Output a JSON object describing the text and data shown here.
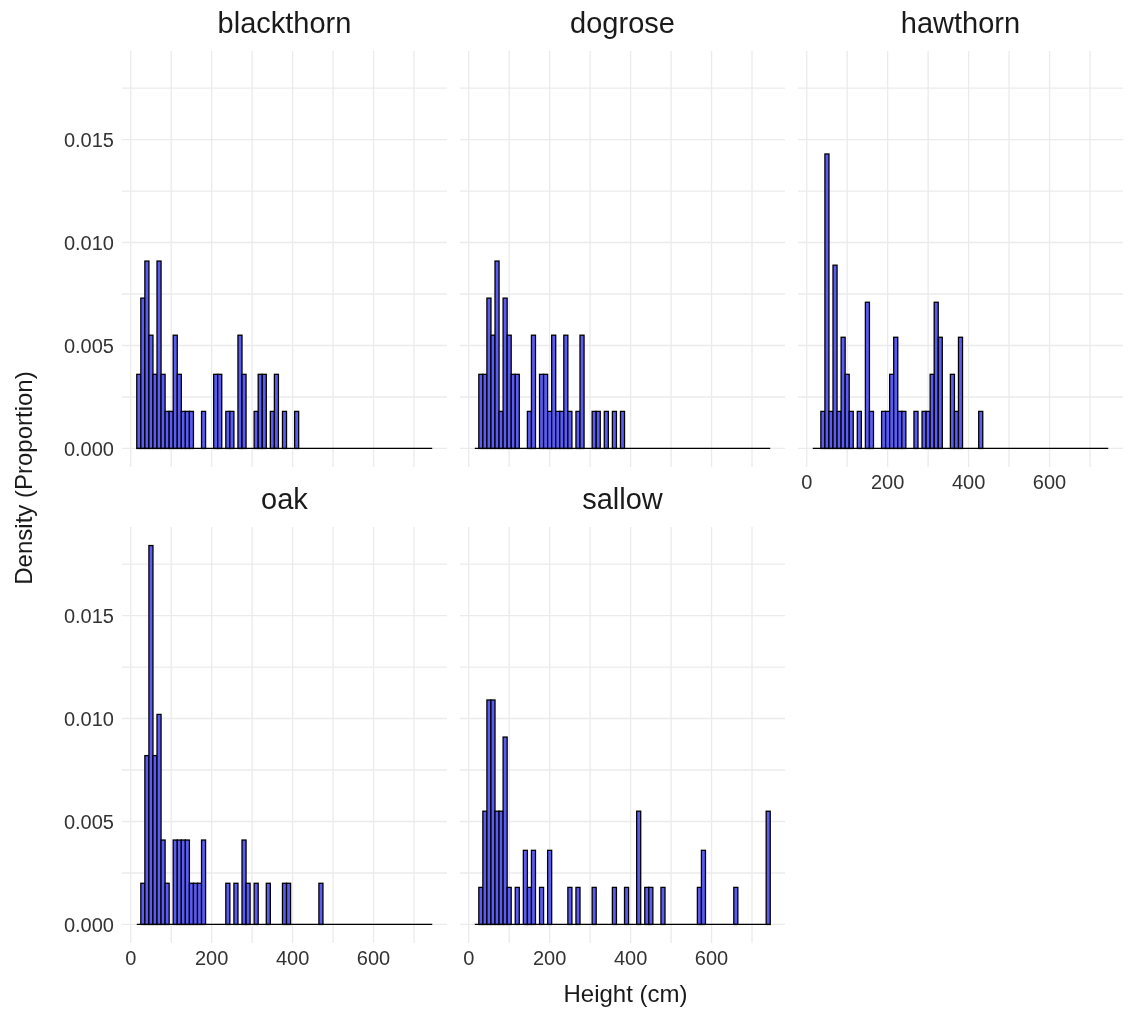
{
  "chart_data": [
    {
      "type": "histogram",
      "title": "blackthorn",
      "color": "#5b5bf5",
      "grid": true,
      "tick_labels": "y",
      "xlim": [
        -21.5,
        781.5
      ],
      "ylim": [
        -0.0009,
        0.0193
      ],
      "xticks": [
        {
          "value": 0,
          "label": null
        },
        {
          "value": 100,
          "label": null
        },
        {
          "value": 200,
          "label": null
        },
        {
          "value": 300,
          "label": null
        },
        {
          "value": 400,
          "label": null
        },
        {
          "value": 500,
          "label": null
        },
        {
          "value": 600,
          "label": null
        },
        {
          "value": 700,
          "label": null
        }
      ],
      "yticks": [
        {
          "value": 0,
          "label": "0.000"
        },
        {
          "value": 0.0025,
          "label": null
        },
        {
          "value": 0.005,
          "label": "0.005"
        },
        {
          "value": 0.0075,
          "label": null
        },
        {
          "value": 0.01,
          "label": "0.010"
        },
        {
          "value": 0.0125,
          "label": null
        },
        {
          "value": 0.015,
          "label": "0.015"
        },
        {
          "value": 0.0175,
          "label": null
        }
      ],
      "bins": [
        15,
        25,
        35,
        45,
        55,
        65,
        75,
        85,
        95,
        105,
        115,
        125,
        135,
        145,
        155,
        165,
        175,
        185,
        195,
        205,
        215,
        225,
        235,
        245,
        255,
        265,
        275,
        285,
        295,
        305,
        315,
        325,
        335,
        345,
        355,
        365,
        375,
        385,
        395,
        405,
        415,
        425,
        435,
        445,
        455,
        465,
        475,
        485,
        495,
        505,
        515,
        525,
        535,
        545,
        555,
        565,
        575,
        585,
        595,
        605,
        615,
        625,
        635,
        645,
        655,
        665,
        675,
        685,
        695,
        705,
        715,
        725,
        735,
        745
      ],
      "values": [
        0.0036,
        0.0073,
        0.0091,
        0.0055,
        0.0036,
        0.0091,
        0.0036,
        0.0018,
        0.0018,
        0.0055,
        0.0036,
        0.0018,
        0.0018,
        0.0018,
        0,
        0,
        0.0018,
        0,
        0,
        0.0036,
        0.0036,
        0,
        0.0018,
        0.0018,
        0,
        0.0055,
        0.0036,
        0,
        0,
        0.0018,
        0.0036,
        0.0036,
        0,
        0.0018,
        0.0036,
        0,
        0.0018,
        0,
        0,
        0.0018,
        0,
        0,
        0,
        0,
        0,
        0,
        0,
        0,
        0,
        0,
        0,
        0,
        0,
        0,
        0,
        0,
        0,
        0,
        0,
        0,
        0,
        0,
        0,
        0,
        0,
        0,
        0,
        0,
        0,
        0,
        0,
        0,
        0
      ]
    },
    {
      "type": "histogram",
      "title": "dogrose",
      "color": "#5b5bf5",
      "grid": true,
      "tick_labels": false,
      "xlim": [
        -21.5,
        781.5
      ],
      "ylim": [
        -0.0009,
        0.0193
      ],
      "xticks": [
        {
          "value": 0,
          "label": null
        },
        {
          "value": 100,
          "label": null
        },
        {
          "value": 200,
          "label": null
        },
        {
          "value": 300,
          "label": null
        },
        {
          "value": 400,
          "label": null
        },
        {
          "value": 500,
          "label": null
        },
        {
          "value": 600,
          "label": null
        },
        {
          "value": 700,
          "label": null
        }
      ],
      "yticks": [
        {
          "value": 0,
          "label": null
        },
        {
          "value": 0.0025,
          "label": null
        },
        {
          "value": 0.005,
          "label": null
        },
        {
          "value": 0.0075,
          "label": null
        },
        {
          "value": 0.01,
          "label": null
        },
        {
          "value": 0.0125,
          "label": null
        },
        {
          "value": 0.015,
          "label": null
        },
        {
          "value": 0.0175,
          "label": null
        }
      ],
      "bins": [
        15,
        25,
        35,
        45,
        55,
        65,
        75,
        85,
        95,
        105,
        115,
        125,
        135,
        145,
        155,
        165,
        175,
        185,
        195,
        205,
        215,
        225,
        235,
        245,
        255,
        265,
        275,
        285,
        295,
        305,
        315,
        325,
        335,
        345,
        355,
        365,
        375,
        385,
        395,
        405,
        415,
        425,
        435,
        445,
        455,
        465,
        475,
        485,
        495,
        505,
        515,
        525,
        535,
        545,
        555,
        565,
        575,
        585,
        595,
        605,
        615,
        625,
        635,
        645,
        655,
        665,
        675,
        685,
        695,
        705,
        715,
        725,
        735,
        745
      ],
      "values": [
        0,
        0.0036,
        0.0036,
        0.0073,
        0.0055,
        0.0091,
        0.0018,
        0.0073,
        0.0055,
        0.0036,
        0.0036,
        0,
        0,
        0.0018,
        0.0055,
        0,
        0.0036,
        0.0036,
        0.0018,
        0.0055,
        0.0018,
        0.0018,
        0.0055,
        0.0018,
        0,
        0.0018,
        0.0055,
        0,
        0,
        0.0018,
        0.0018,
        0,
        0.0018,
        0,
        0.0018,
        0,
        0.0018,
        0,
        0,
        0,
        0,
        0,
        0,
        0,
        0,
        0,
        0,
        0,
        0,
        0,
        0,
        0,
        0,
        0,
        0,
        0,
        0,
        0,
        0,
        0,
        0,
        0,
        0,
        0,
        0,
        0,
        0,
        0,
        0,
        0,
        0,
        0,
        0
      ]
    },
    {
      "type": "histogram",
      "title": "hawthorn",
      "color": "#5b5bf5",
      "grid": true,
      "tick_labels": "x",
      "xlim": [
        -21.5,
        781.5
      ],
      "ylim": [
        -0.0009,
        0.0193
      ],
      "xticks": [
        0,
        {
          "value": 100,
          "label": null
        },
        200,
        {
          "value": 300,
          "label": null
        },
        400,
        {
          "value": 500,
          "label": null
        },
        600,
        {
          "value": 700,
          "label": null
        }
      ],
      "yticks": [
        {
          "value": 0,
          "label": null
        },
        {
          "value": 0.0025,
          "label": null
        },
        {
          "value": 0.005,
          "label": null
        },
        {
          "value": 0.0075,
          "label": null
        },
        {
          "value": 0.01,
          "label": null
        },
        {
          "value": 0.0125,
          "label": null
        },
        {
          "value": 0.015,
          "label": null
        },
        {
          "value": 0.0175,
          "label": null
        }
      ],
      "bins": [
        15,
        25,
        35,
        45,
        55,
        65,
        75,
        85,
        95,
        105,
        115,
        125,
        135,
        145,
        155,
        165,
        175,
        185,
        195,
        205,
        215,
        225,
        235,
        245,
        255,
        265,
        275,
        285,
        295,
        305,
        315,
        325,
        335,
        345,
        355,
        365,
        375,
        385,
        395,
        405,
        415,
        425,
        435,
        445,
        455,
        465,
        475,
        485,
        495,
        505,
        515,
        525,
        535,
        545,
        555,
        565,
        575,
        585,
        595,
        605,
        615,
        625,
        635,
        645,
        655,
        665,
        675,
        685,
        695,
        705,
        715,
        725,
        735,
        745
      ],
      "values": [
        0,
        0,
        0.0018,
        0.0143,
        0.0018,
        0.0089,
        0.0018,
        0.0054,
        0.0036,
        0.0018,
        0,
        0.0018,
        0,
        0.0071,
        0.0018,
        0,
        0,
        0.0018,
        0.0018,
        0.0036,
        0.0054,
        0.0018,
        0.0018,
        0,
        0,
        0.0018,
        0,
        0.0018,
        0.0018,
        0.0036,
        0.0071,
        0.0054,
        0,
        0,
        0.0036,
        0.0018,
        0.0054,
        0,
        0,
        0,
        0,
        0.0018,
        0,
        0,
        0,
        0,
        0,
        0,
        0,
        0,
        0,
        0,
        0,
        0,
        0,
        0,
        0,
        0,
        0,
        0,
        0,
        0,
        0,
        0,
        0,
        0,
        0,
        0,
        0,
        0,
        0,
        0,
        0
      ]
    },
    {
      "type": "histogram",
      "title": "oak",
      "xlabel": "Height (cm)",
      "ylabel": "Density (Proportion)",
      "color": "#5b5bf5",
      "grid": true,
      "xlim": [
        -21.5,
        781.5
      ],
      "ylim": [
        -0.0009,
        0.0193
      ],
      "xticks": [
        0,
        {
          "value": 100,
          "label": null
        },
        200,
        {
          "value": 300,
          "label": null
        },
        400,
        {
          "value": 500,
          "label": null
        },
        600,
        {
          "value": 700,
          "label": null
        }
      ],
      "yticks": [
        {
          "value": 0,
          "label": "0.000"
        },
        {
          "value": 0.0025,
          "label": null
        },
        {
          "value": 0.005,
          "label": "0.005"
        },
        {
          "value": 0.0075,
          "label": null
        },
        {
          "value": 0.01,
          "label": "0.010"
        },
        {
          "value": 0.0125,
          "label": null
        },
        {
          "value": 0.015,
          "label": "0.015"
        },
        {
          "value": 0.0175,
          "label": null
        }
      ],
      "bins": [
        15,
        25,
        35,
        45,
        55,
        65,
        75,
        85,
        95,
        105,
        115,
        125,
        135,
        145,
        155,
        165,
        175,
        185,
        195,
        205,
        215,
        225,
        235,
        245,
        255,
        265,
        275,
        285,
        295,
        305,
        315,
        325,
        335,
        345,
        355,
        365,
        375,
        385,
        395,
        405,
        415,
        425,
        435,
        445,
        455,
        465,
        475,
        485,
        495,
        505,
        515,
        525,
        535,
        545,
        555,
        565,
        575,
        585,
        595,
        605,
        615,
        625,
        635,
        645,
        655,
        665,
        675,
        685,
        695,
        705,
        715,
        725,
        735,
        745
      ],
      "values": [
        0,
        0.002,
        0.0082,
        0.0184,
        0.0082,
        0.0102,
        0.0041,
        0.002,
        0,
        0.0041,
        0.0041,
        0.0041,
        0.0041,
        0.002,
        0.002,
        0.002,
        0.0041,
        0,
        0,
        0,
        0,
        0,
        0.002,
        0,
        0.002,
        0,
        0.0041,
        0.002,
        0,
        0.002,
        0,
        0,
        0.002,
        0,
        0,
        0,
        0.002,
        0.002,
        0,
        0,
        0,
        0,
        0,
        0,
        0,
        0.002,
        0,
        0,
        0,
        0,
        0,
        0,
        0,
        0,
        0,
        0,
        0,
        0,
        0,
        0,
        0,
        0,
        0,
        0,
        0,
        0,
        0,
        0,
        0,
        0,
        0,
        0,
        0
      ]
    },
    {
      "type": "histogram",
      "title": "sallow",
      "color": "#5b5bf5",
      "grid": true,
      "tick_labels": "x",
      "xlim": [
        -21.5,
        781.5
      ],
      "ylim": [
        -0.0009,
        0.0193
      ],
      "xticks": [
        0,
        {
          "value": 100,
          "label": null
        },
        200,
        {
          "value": 300,
          "label": null
        },
        400,
        {
          "value": 500,
          "label": null
        },
        600,
        {
          "value": 700,
          "label": null
        }
      ],
      "yticks": [
        {
          "value": 0,
          "label": null
        },
        {
          "value": 0.0025,
          "label": null
        },
        {
          "value": 0.005,
          "label": null
        },
        {
          "value": 0.0075,
          "label": null
        },
        {
          "value": 0.01,
          "label": null
        },
        {
          "value": 0.0125,
          "label": null
        },
        {
          "value": 0.015,
          "label": null
        },
        {
          "value": 0.0175,
          "label": null
        }
      ],
      "bins": [
        15,
        25,
        35,
        45,
        55,
        65,
        75,
        85,
        95,
        105,
        115,
        125,
        135,
        145,
        155,
        165,
        175,
        185,
        195,
        205,
        215,
        225,
        235,
        245,
        255,
        265,
        275,
        285,
        295,
        305,
        315,
        325,
        335,
        345,
        355,
        365,
        375,
        385,
        395,
        405,
        415,
        425,
        435,
        445,
        455,
        465,
        475,
        485,
        495,
        505,
        515,
        525,
        535,
        545,
        555,
        565,
        575,
        585,
        595,
        605,
        615,
        625,
        635,
        645,
        655,
        665,
        675,
        685,
        695,
        705,
        715,
        725,
        735,
        745
      ],
      "values": [
        0,
        0.0018,
        0.0055,
        0.0109,
        0.0109,
        0.0055,
        0.0055,
        0.0091,
        0.0018,
        0,
        0.0018,
        0,
        0.0036,
        0.0018,
        0.0036,
        0,
        0.0018,
        0,
        0.0036,
        0,
        0,
        0,
        0,
        0.0018,
        0,
        0.0018,
        0,
        0,
        0,
        0.0018,
        0,
        0,
        0,
        0,
        0.0018,
        0,
        0,
        0.0018,
        0,
        0,
        0.0055,
        0,
        0.0018,
        0.0018,
        0,
        0,
        0.0018,
        0,
        0,
        0,
        0,
        0,
        0,
        0,
        0,
        0.0018,
        0.0036,
        0,
        0,
        0,
        0,
        0,
        0,
        0,
        0.0018,
        0,
        0,
        0,
        0,
        0,
        0,
        0,
        0.0055
      ]
    }
  ]
}
